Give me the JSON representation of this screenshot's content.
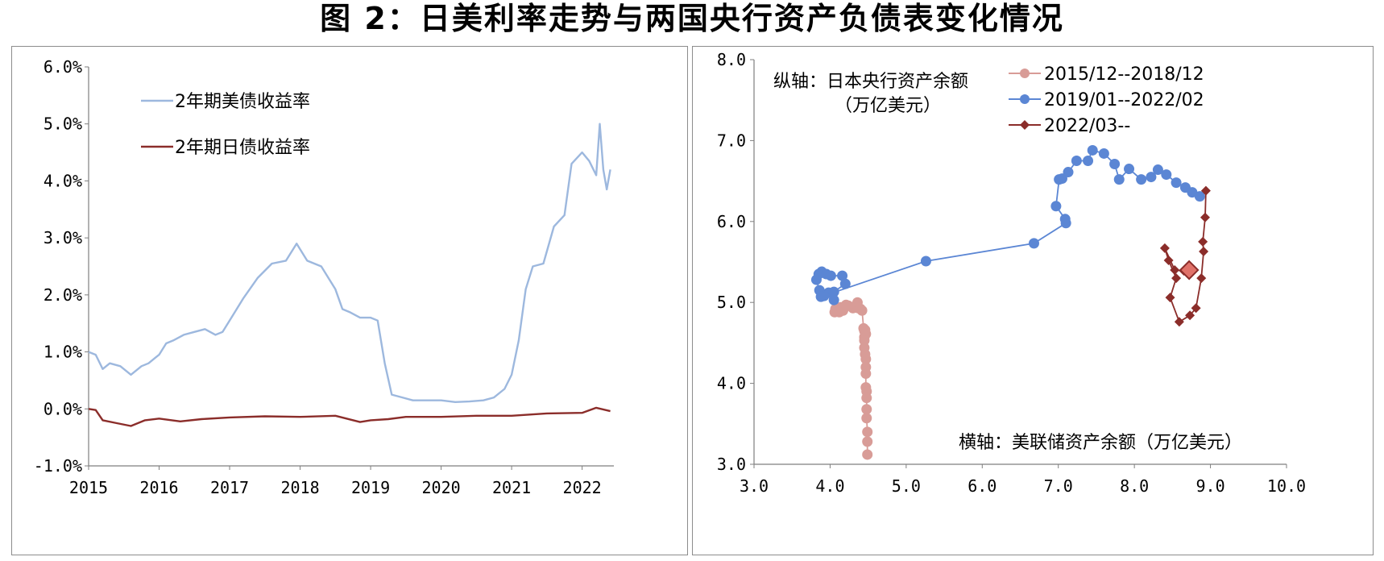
{
  "figure_title": "图 2：日美利率走势与两国央行资产负债表变化情况",
  "colors": {
    "us": "#9db8de",
    "jp": "#8b2d2a",
    "s1": "#d89c97",
    "s2": "#5b86d4",
    "s3": "#8b2d2a",
    "s3_highlight": "#e0726a"
  },
  "chart_data": [
    {
      "type": "line",
      "legend_placement": "top-left",
      "grid": false,
      "x_tick_labels": [
        "2015",
        "2016",
        "2017",
        "2018",
        "2019",
        "2020",
        "2021",
        "2022"
      ],
      "xlim": [
        2015.0,
        2022.45
      ],
      "y_tick_labels": [
        "-1.0%",
        "0.0%",
        "1.0%",
        "2.0%",
        "3.0%",
        "4.0%",
        "5.0%",
        "6.0%"
      ],
      "ylim": [
        -1.0,
        6.0
      ],
      "series": [
        {
          "name": "2年期美债收益率",
          "color": "#9db8de",
          "x": [
            2015.0,
            2015.1,
            2015.2,
            2015.3,
            2015.45,
            2015.6,
            2015.75,
            2015.85,
            2015.95,
            2016.0,
            2016.1,
            2016.2,
            2016.35,
            2016.5,
            2016.65,
            2016.8,
            2016.9,
            2017.0,
            2017.2,
            2017.4,
            2017.6,
            2017.8,
            2017.95,
            2018.1,
            2018.3,
            2018.5,
            2018.6,
            2018.7,
            2018.85,
            2019.0,
            2019.1,
            2019.2,
            2019.3,
            2019.45,
            2019.6,
            2019.8,
            2020.0,
            2020.2,
            2020.4,
            2020.6,
            2020.75,
            2020.9,
            2021.0,
            2021.1,
            2021.2,
            2021.3,
            2021.45,
            2021.6,
            2021.75,
            2021.85,
            2022.0,
            2022.1,
            2022.2,
            2022.25,
            2022.3,
            2022.35,
            2022.4
          ],
          "values": [
            1.0,
            0.95,
            0.7,
            0.8,
            0.75,
            0.6,
            0.75,
            0.8,
            0.9,
            0.95,
            1.15,
            1.2,
            1.3,
            1.35,
            1.4,
            1.3,
            1.35,
            1.55,
            1.95,
            2.3,
            2.55,
            2.6,
            2.9,
            2.6,
            2.5,
            2.1,
            1.75,
            1.7,
            1.6,
            1.6,
            1.55,
            0.8,
            0.25,
            0.2,
            0.15,
            0.15,
            0.15,
            0.12,
            0.13,
            0.15,
            0.2,
            0.35,
            0.6,
            1.2,
            2.1,
            2.5,
            2.55,
            3.2,
            3.4,
            4.3,
            4.5,
            4.35,
            4.1,
            5.0,
            4.2,
            3.85,
            4.2
          ]
        },
        {
          "name": "2年期日债收益率",
          "color": "#8b2d2a",
          "x": [
            2015.0,
            2015.1,
            2015.2,
            2015.4,
            2015.6,
            2015.8,
            2016.0,
            2016.3,
            2016.6,
            2017.0,
            2017.5,
            2018.0,
            2018.5,
            2018.85,
            2019.0,
            2019.25,
            2019.5,
            2020.0,
            2020.5,
            2021.0,
            2021.5,
            2022.0,
            2022.2,
            2022.4
          ],
          "values": [
            0.0,
            -0.02,
            -0.2,
            -0.25,
            -0.3,
            -0.2,
            -0.17,
            -0.22,
            -0.18,
            -0.15,
            -0.13,
            -0.14,
            -0.12,
            -0.23,
            -0.2,
            -0.18,
            -0.14,
            -0.14,
            -0.12,
            -0.12,
            -0.08,
            -0.07,
            0.02,
            -0.04
          ]
        }
      ]
    },
    {
      "type": "scatter",
      "legend_placement": "top-right",
      "grid": false,
      "x_tick_labels": [
        "3.0",
        "4.0",
        "5.0",
        "6.0",
        "7.0",
        "8.0",
        "9.0",
        "10.0"
      ],
      "xlim": [
        3.0,
        10.0
      ],
      "y_tick_labels": [
        "3.0",
        "4.0",
        "5.0",
        "6.0",
        "7.0",
        "8.0"
      ],
      "ylim": [
        3.0,
        8.0
      ],
      "ylabel": "纵轴：日本央行资产余额",
      "ylabel_unit": "（万亿美元）",
      "xlabel": "横轴：美联储资产余额（万亿美元）",
      "series": [
        {
          "name": "2015/12--2018/12",
          "color": "#d89c97",
          "marker": "circle",
          "x": [
            4.49,
            4.49,
            4.49,
            4.48,
            4.48,
            4.48,
            4.48,
            4.47,
            4.47,
            4.47,
            4.47,
            4.46,
            4.45,
            4.45,
            4.45,
            4.46,
            4.46,
            4.47,
            4.45,
            4.44,
            4.42,
            4.37,
            4.3,
            4.24,
            4.17,
            4.12,
            4.07,
            4.06,
            4.14,
            4.21,
            4.36,
            4.4
          ],
          "y": [
            3.12,
            3.28,
            3.4,
            3.57,
            3.68,
            3.82,
            3.9,
            3.95,
            4.12,
            4.2,
            4.3,
            4.36,
            4.44,
            4.53,
            4.57,
            4.62,
            4.66,
            4.61,
            4.65,
            4.68,
            4.9,
            4.93,
            4.93,
            4.96,
            4.9,
            4.88,
            4.92,
            4.88,
            4.94,
            4.97,
            5.0,
            4.92
          ]
        },
        {
          "name": "2019/01--2022/02",
          "color": "#5b86d4",
          "marker": "circle",
          "x": [
            4.05,
            3.98,
            3.92,
            3.86,
            3.82,
            3.85,
            3.89,
            3.95,
            4.01,
            4.16,
            4.2,
            4.05,
            3.88,
            5.26,
            6.68,
            7.1,
            7.09,
            6.97,
            7.01,
            7.05,
            7.13,
            7.24,
            7.39,
            7.45,
            7.6,
            7.74,
            7.8,
            7.93,
            8.09,
            8.22,
            8.31,
            8.42,
            8.55,
            8.67,
            8.76,
            8.86
          ],
          "y": [
            5.03,
            5.12,
            5.08,
            5.15,
            5.28,
            5.35,
            5.38,
            5.35,
            5.33,
            5.33,
            5.23,
            5.13,
            5.07,
            5.51,
            5.73,
            5.98,
            6.03,
            6.19,
            6.52,
            6.53,
            6.61,
            6.75,
            6.75,
            6.88,
            6.84,
            6.71,
            6.52,
            6.65,
            6.52,
            6.55,
            6.64,
            6.58,
            6.48,
            6.42,
            6.36,
            6.31
          ]
        },
        {
          "name": "2022/03--",
          "color": "#8b2d2a",
          "marker": "diamond",
          "x": [
            8.94,
            8.93,
            8.9,
            8.91,
            8.88,
            8.81,
            8.73,
            8.59,
            8.47,
            8.55,
            8.45,
            8.4,
            8.53,
            8.65,
            8.72
          ],
          "y": [
            6.38,
            6.05,
            5.75,
            5.63,
            5.3,
            4.93,
            4.84,
            4.76,
            5.06,
            5.3,
            5.52,
            5.67,
            5.4,
            5.39,
            5.4
          ]
        }
      ]
    }
  ]
}
